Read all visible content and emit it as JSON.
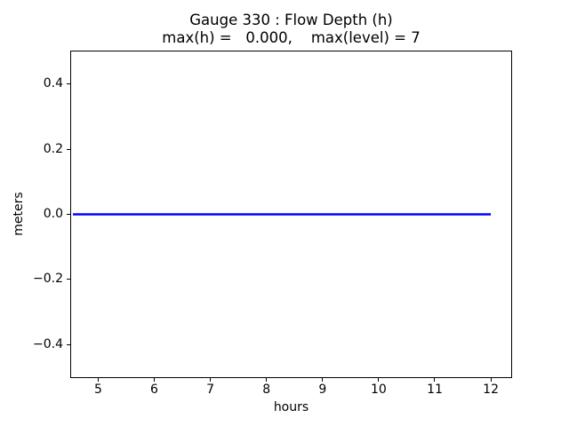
{
  "chart_data": {
    "type": "line",
    "title_line1": "Gauge 330 : Flow Depth (h)",
    "title_line2": "max(h) =   0.000,    max(level) = 7",
    "xlabel": "hours",
    "ylabel": "meters",
    "xlim": [
      4.518,
      12.363
    ],
    "ylim": [
      -0.5,
      0.5
    ],
    "xticks": [
      5,
      6,
      7,
      8,
      9,
      10,
      11,
      12
    ],
    "xtick_labels": [
      "5",
      "6",
      "7",
      "8",
      "9",
      "10",
      "11",
      "12"
    ],
    "yticks": [
      -0.4,
      -0.2,
      0.0,
      0.2,
      0.4
    ],
    "ytick_labels": [
      "−0.4",
      "−0.2",
      "0.0",
      "0.2",
      "0.4"
    ],
    "grid": false,
    "legend_position": "none",
    "background_color": "#ffffff",
    "axis_color": "#000000",
    "series": [
      {
        "name": "h",
        "color": "#0000ff",
        "line_width": 2.5,
        "x": [
          4.55,
          12.0
        ],
        "y": [
          0.0,
          0.0
        ]
      }
    ]
  }
}
